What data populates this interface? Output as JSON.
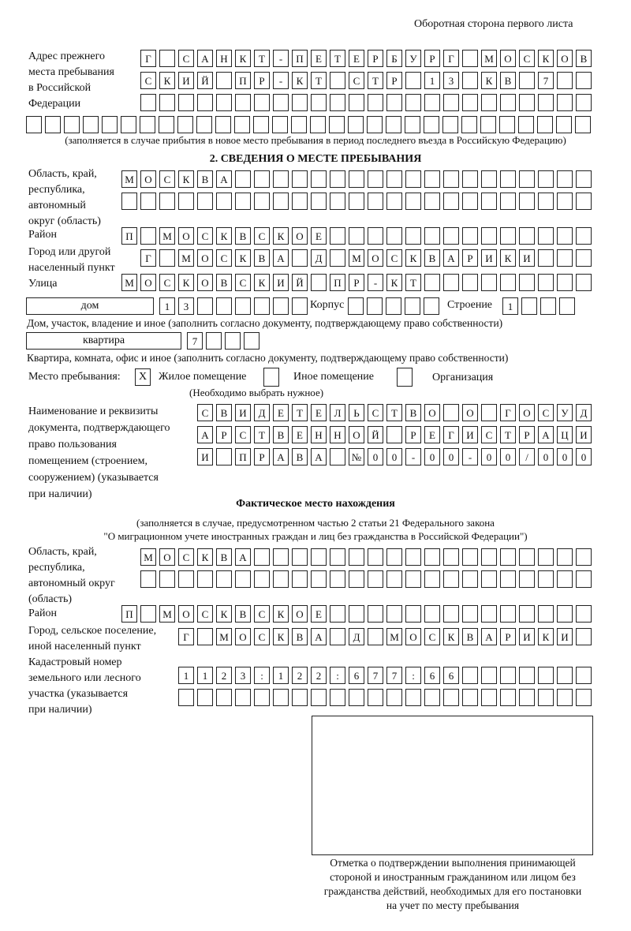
{
  "header": {
    "side_label": "Оборотная сторона первого листа"
  },
  "previous_address": {
    "label": [
      "Адрес прежнего",
      "места пребывания",
      "в Российской",
      "Федерации"
    ],
    "rows": [
      [
        "Г",
        "",
        "С",
        "А",
        "Н",
        "К",
        "Т",
        "-",
        "П",
        "Е",
        "Т",
        "Е",
        "Р",
        "Б",
        "У",
        "Р",
        "Г",
        "",
        "М",
        "О",
        "С",
        "К",
        "О",
        "В"
      ],
      [
        "С",
        "К",
        "И",
        "Й",
        "",
        "П",
        "Р",
        "-",
        "К",
        "Т",
        "",
        "С",
        "Т",
        "Р",
        "",
        "1",
        "3",
        "",
        "К",
        "В",
        "",
        "7",
        "",
        ""
      ],
      [
        "",
        "",
        "",
        "",
        "",
        "",
        "",
        "",
        "",
        "",
        "",
        "",
        "",
        "",
        "",
        "",
        "",
        "",
        "",
        "",
        "",
        "",
        "",
        ""
      ],
      [
        "",
        "",
        "",
        "",
        "",
        "",
        "",
        "",
        "",
        "",
        "",
        "",
        "",
        "",
        "",
        "",
        "",
        "",
        "",
        "",
        "",
        "",
        "",
        "",
        "",
        "",
        "",
        "",
        "",
        ""
      ]
    ],
    "note": "(заполняется в случае прибытия в новое место пребывания в период последнего въезда в Российскую Федерацию)"
  },
  "section2": {
    "title": "2. СВЕДЕНИЯ О МЕСТЕ ПРЕБЫВАНИЯ",
    "region_label": [
      "Область, край,",
      "республика,",
      "автономный",
      "округ (область)"
    ],
    "region_rows": [
      [
        "М",
        "О",
        "С",
        "К",
        "В",
        "А",
        "",
        "",
        "",
        "",
        "",
        "",
        "",
        "",
        "",
        "",
        "",
        "",
        "",
        "",
        "",
        "",
        "",
        "",
        ""
      ],
      [
        "",
        "",
        "",
        "",
        "",
        "",
        "",
        "",
        "",
        "",
        "",
        "",
        "",
        "",
        "",
        "",
        "",
        "",
        "",
        "",
        "",
        "",
        "",
        "",
        ""
      ]
    ],
    "district_label": "Район",
    "district": [
      "П",
      "",
      "М",
      "О",
      "С",
      "К",
      "В",
      "С",
      "К",
      "О",
      "Е",
      "",
      "",
      "",
      "",
      "",
      "",
      "",
      "",
      "",
      "",
      "",
      "",
      "",
      ""
    ],
    "city_label": [
      "Город или другой",
      "населенный пункт"
    ],
    "city": [
      "Г",
      "",
      "М",
      "О",
      "С",
      "К",
      "В",
      "А",
      "",
      "Д",
      "",
      "М",
      "О",
      "С",
      "К",
      "В",
      "А",
      "Р",
      "И",
      "К",
      "И",
      "",
      "",
      ""
    ],
    "street_label": "Улица",
    "street": [
      "М",
      "О",
      "С",
      "К",
      "О",
      "В",
      "С",
      "К",
      "И",
      "Й",
      "",
      "П",
      "Р",
      "-",
      "К",
      "Т",
      "",
      "",
      "",
      "",
      "",
      "",
      "",
      "",
      ""
    ],
    "house_type": "дом",
    "house": [
      "1",
      "3",
      "",
      "",
      "",
      "",
      "",
      ""
    ],
    "korpus_label": "Корпус",
    "korpus": [
      "",
      "",
      "",
      "",
      ""
    ],
    "building_label": "Строение",
    "building": [
      "1",
      "",
      "",
      ""
    ],
    "house_note": "Дом, участок, владение и иное (заполнить согласно документу, подтверждающему право собственности)",
    "flat_type": "квартира",
    "flat": [
      "7",
      "",
      "",
      ""
    ],
    "flat_note": "Квартира, комната, офис и иное (заполнить согласно документу, подтверждающему право собственности)",
    "stay_place_label": "Место пребывания:",
    "stay_options": [
      {
        "label": "Жилое помещение",
        "mark": "X"
      },
      {
        "label": "Иное помещение",
        "mark": ""
      },
      {
        "label": "Организация",
        "mark": ""
      }
    ],
    "stay_note": "(Необходимо выбрать нужное)",
    "doc_label": [
      "Наименование и реквизиты",
      "документа, подтверждающего",
      "право пользования",
      "помещением (строением,",
      "сооружением) (указывается",
      "при наличии)"
    ],
    "doc_rows": [
      [
        "С",
        "В",
        "И",
        "Д",
        "Е",
        "Т",
        "Е",
        "Л",
        "Ь",
        "С",
        "Т",
        "В",
        "О",
        "",
        "О",
        "",
        "Г",
        "О",
        "С",
        "У",
        "Д"
      ],
      [
        "А",
        "Р",
        "С",
        "Т",
        "В",
        "Е",
        "Н",
        "Н",
        "О",
        "Й",
        "",
        "Р",
        "Е",
        "Г",
        "И",
        "С",
        "Т",
        "Р",
        "А",
        "Ц",
        "И"
      ],
      [
        "И",
        "",
        "П",
        "Р",
        "А",
        "В",
        "А",
        "",
        "№",
        "0",
        "0",
        "-",
        "0",
        "0",
        "-",
        "0",
        "0",
        "/",
        "0",
        "0",
        "0"
      ]
    ]
  },
  "actual": {
    "title": "Фактическое место нахождения",
    "note_lines": [
      "(заполняется в случае, предусмотренном частью 2 статьи 21 Федерального закона",
      "\"О миграционном учете иностранных граждан и лиц без гражданства в Российской Федерации\")"
    ],
    "region_label": [
      "Область, край,",
      "республика,",
      "автономный округ",
      "(область)"
    ],
    "region_rows": [
      [
        "М",
        "О",
        "С",
        "К",
        "В",
        "А",
        "",
        "",
        "",
        "",
        "",
        "",
        "",
        "",
        "",
        "",
        "",
        "",
        "",
        "",
        "",
        "",
        "",
        ""
      ],
      [
        "",
        "",
        "",
        "",
        "",
        "",
        "",
        "",
        "",
        "",
        "",
        "",
        "",
        "",
        "",
        "",
        "",
        "",
        "",
        "",
        "",
        "",
        "",
        ""
      ]
    ],
    "district_label": "Район",
    "district": [
      "П",
      "",
      "М",
      "О",
      "С",
      "К",
      "В",
      "С",
      "К",
      "О",
      "Е",
      "",
      "",
      "",
      "",
      "",
      "",
      "",
      "",
      "",
      "",
      "",
      "",
      "",
      ""
    ],
    "city_label": [
      "Город, сельское поселение,",
      "иной населенный пункт"
    ],
    "city": [
      "Г",
      "",
      "М",
      "О",
      "С",
      "К",
      "В",
      "А",
      "",
      "Д",
      "",
      "М",
      "О",
      "С",
      "К",
      "В",
      "А",
      "Р",
      "И",
      "К",
      "И",
      ""
    ],
    "cadastre_label": [
      "Кадастровый номер",
      "земельного или лесного",
      "участка (указывается",
      "при наличии)"
    ],
    "cadastre_rows": [
      [
        "1",
        "1",
        "2",
        "3",
        ":",
        "1",
        "2",
        "2",
        ":",
        "6",
        "7",
        "7",
        ":",
        "6",
        "6",
        "",
        "",
        "",
        "",
        "",
        "",
        ""
      ],
      [
        "",
        "",
        "",
        "",
        "",
        "",
        "",
        "",
        "",
        "",
        "",
        "",
        "",
        "",
        "",
        "",
        "",
        "",
        "",
        "",
        "",
        ""
      ]
    ]
  },
  "confirmation": {
    "caption_lines": [
      "Отметка о подтверждении выполнения принимающей",
      "стороной и иностранным гражданином или лицом без",
      "гражданства действий, необходимых для его постановки",
      "на учет по месту пребывания"
    ]
  }
}
